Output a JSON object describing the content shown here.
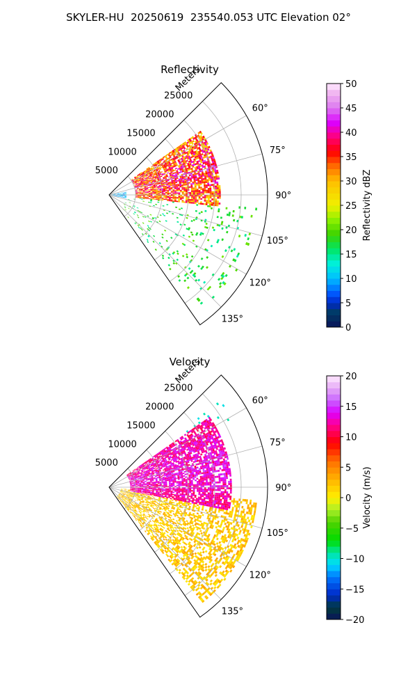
{
  "title": "SKYLER-HU  20250619  235540.053 UTC Elevation 02°",
  "chart_data": [
    {
      "type": "heatmap",
      "plot": "polar-sector (PPI)",
      "title": "Reflectivity",
      "radial_axis_label": "Meters",
      "radial_ticks": [
        5000,
        10000,
        15000,
        20000,
        25000
      ],
      "radial_range_m": [
        0,
        30000
      ],
      "azimuth_range_deg": [
        45,
        145
      ],
      "azimuth_ticks": [
        "60°",
        "75°",
        "90°",
        "105°",
        "120°",
        "135°"
      ],
      "colorbar": {
        "label": "Reflectivity dBZ",
        "range": [
          0,
          50
        ],
        "ticks": [
          0,
          5,
          10,
          15,
          20,
          25,
          30,
          35,
          40,
          45,
          50
        ],
        "colormap": "radar reflectivity (navy→blue→cyan→green→yellow→orange→red→magenta→pink)"
      },
      "features": [
        {
          "description": "main echo band",
          "azimuth_deg": [
            55,
            95
          ],
          "range_m": [
            5000,
            21000
          ],
          "value_range": [
            20,
            45
          ]
        },
        {
          "description": "scattered weak echoes",
          "azimuth_deg": [
            95,
            140
          ],
          "range_m": [
            3000,
            28000
          ],
          "value_range": [
            10,
            25
          ]
        },
        {
          "description": "near-radar clutter",
          "azimuth_deg": [
            80,
            100
          ],
          "range_m": [
            0,
            3000
          ],
          "value_range": [
            5,
            15
          ]
        }
      ]
    },
    {
      "type": "heatmap",
      "plot": "polar-sector (PPI)",
      "title": "Velocity",
      "radial_axis_label": "Meters",
      "radial_ticks": [
        5000,
        10000,
        15000,
        20000,
        25000
      ],
      "radial_range_m": [
        0,
        30000
      ],
      "azimuth_range_deg": [
        45,
        145
      ],
      "azimuth_ticks": [
        "60°",
        "75°",
        "90°",
        "105°",
        "120°",
        "135°"
      ],
      "colorbar": {
        "label": "Velocity (m/s)",
        "range": [
          -20,
          20
        ],
        "ticks": [
          -20,
          -15,
          -10,
          -5,
          0,
          5,
          10,
          15,
          20
        ],
        "colormap": "diverging velocity (navy→blue→cyan→green→yellow→orange→red→magenta→pink)"
      },
      "features": [
        {
          "description": "outbound band",
          "azimuth_deg": [
            55,
            100
          ],
          "range_m": [
            4000,
            23000
          ],
          "value_range": [
            8,
            16
          ]
        },
        {
          "description": "inbound edge",
          "azimuth_deg": [
            52,
            60
          ],
          "range_m": [
            18000,
            27000
          ],
          "value_range": [
            -12,
            -8
          ]
        },
        {
          "description": "near-zero scatter",
          "azimuth_deg": [
            95,
            140
          ],
          "range_m": [
            2000,
            28000
          ],
          "value_range": [
            -2,
            6
          ]
        }
      ]
    }
  ]
}
